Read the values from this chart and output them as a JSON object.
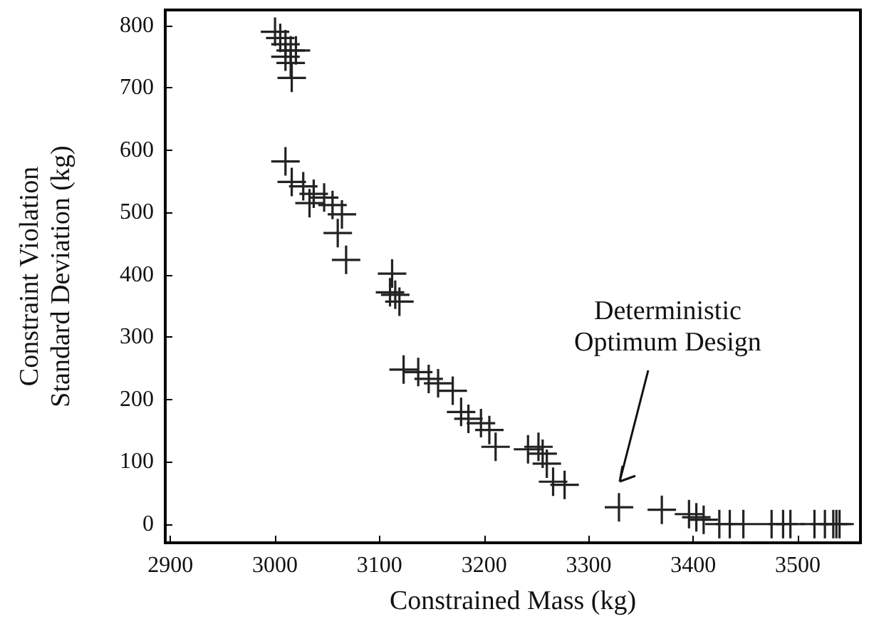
{
  "chart_data": {
    "type": "scatter",
    "xlabel": "Constrained Mass (kg)",
    "ylabel": "Constraint Violation\nStandard Deviation (kg)",
    "x": [
      3000,
      3005,
      3010,
      3015,
      3010,
      3020,
      3015,
      3016,
      3010,
      3016,
      3027,
      3037,
      3047,
      3055,
      3064,
      3060,
      3068,
      3033,
      3112,
      3115,
      3119,
      3110,
      3123,
      3137,
      3147,
      3156,
      3170,
      3178,
      3185,
      3197,
      3205,
      3211,
      3242,
      3252,
      3256,
      3260,
      3266,
      3277,
      3329,
      3370,
      3396,
      3403,
      3410,
      3425,
      3435,
      3448,
      3475,
      3486,
      3493,
      3516,
      3526,
      3534,
      3537,
      3540
    ],
    "values": [
      790,
      780,
      770,
      760,
      750,
      760,
      740,
      716,
      582,
      549,
      542,
      530,
      524,
      512,
      497,
      467,
      424,
      515,
      402,
      368,
      357,
      372,
      248,
      244,
      233,
      226,
      214,
      180,
      169,
      162,
      151,
      124,
      120,
      124,
      113,
      97,
      68,
      63,
      27,
      23,
      16,
      11,
      7,
      0,
      0,
      0,
      0,
      0,
      0,
      0,
      0,
      0,
      0,
      0
    ],
    "color": "#222222",
    "marker": "cross",
    "grid": false,
    "xlim": [
      2895,
      3560
    ],
    "xticks": [
      2900,
      3000,
      3100,
      3200,
      3300,
      3400,
      3500
    ],
    "ylim": [
      -30,
      825
    ],
    "yticks": [
      0,
      100,
      200,
      300,
      400,
      500,
      600,
      700,
      800
    ],
    "annotations": [
      "Deterministic\nOptimum Design"
    ]
  }
}
